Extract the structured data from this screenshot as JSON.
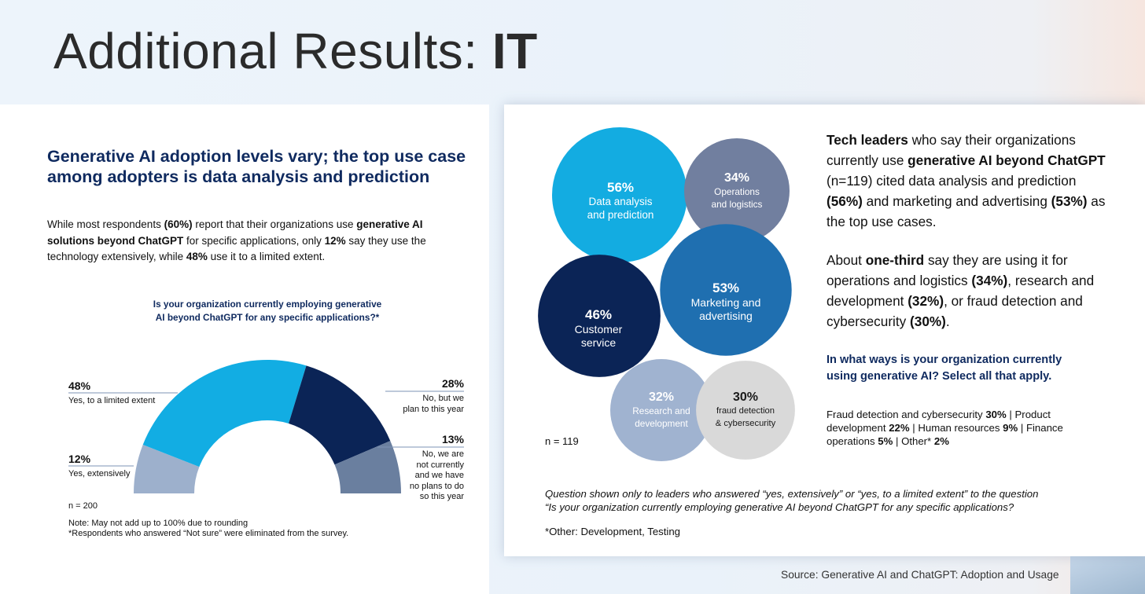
{
  "slide": {
    "title_regular": "Additional Results: ",
    "title_bold": "IT",
    "source": "Source: Generative AI and ChatGPT: Adoption and Usage"
  },
  "left": {
    "headline": "Generative AI adoption levels vary; the top use case among adopters is data analysis and prediction",
    "intro": {
      "t1": "While most respondents ",
      "b1": "(60%)",
      "t2": " report that their organizations use ",
      "b2": "generative AI solutions beyond ChatGPT",
      "t3": " for specific applications, only ",
      "b3": "12%",
      "t4": " say they use the technology extensively, while ",
      "b4": "48%",
      "t5": " use it to a limited extent."
    },
    "question_line1": "Is your organization currently employing generative",
    "question_line2": "AI beyond ChatGPT for any specific applications?*",
    "n": "n = 200",
    "note_line1": "Note: May not add up to 100% due to rounding",
    "note_line2": "*Respondents who answered “Not sure” were eliminated from the survey."
  },
  "right": {
    "n": "n = 119",
    "para1": {
      "b1": "Tech leaders",
      "t1": " who say their organizations currently use ",
      "b2": "generative AI beyond ChatGPT",
      "t2": " (n=119) cited data analysis and prediction ",
      "b3": "(56%)",
      "t3": " and marketing and advertising ",
      "b4": "(53%)",
      "t4": " as the top use cases."
    },
    "para2": {
      "t1": "About ",
      "b1": "one-third",
      "t2": " say they are using it for operations and logistics ",
      "b2": "(34%)",
      "t3": ", research and development ",
      "b3": "(32%)",
      "t4": ", or fraud detection and cybersecurity ",
      "b4": "(30%)",
      "t5": "."
    },
    "question": "In what ways is your organization currently using generative AI? Select all that apply.",
    "other_uses": {
      "l1": "Fraud detection and cybersecurity ",
      "v1": "30%",
      "s1": " | ",
      "l2": "Product development ",
      "v2": "22%",
      "s2": " | ",
      "l3": "Human resources ",
      "v3": "9%",
      "s3": " | ",
      "l4": "Finance operations ",
      "v4": "5%",
      "s4": " | ",
      "l5": "Other* ",
      "v5": "2%"
    },
    "italic_note_line1": "Question shown only to leaders who answered “yes, extensively” or “yes, to a limited extent” to the question",
    "italic_note_line2": "“Is your organization currently employing generative AI beyond ChatGPT for any specific applications?",
    "other_note": "*Other: Development, Testing"
  },
  "chart_data": [
    {
      "type": "pie",
      "subtype": "half-donut",
      "title": "Is your organization currently employing generative AI beyond ChatGPT for any specific applications?*",
      "slices": [
        {
          "label_line1": "Yes, extensively",
          "label_line2": "",
          "value": 12,
          "value_label": "12%",
          "color": "#9db0cc"
        },
        {
          "label_line1": "Yes, to a limited extent",
          "label_line2": "",
          "value": 48,
          "value_label": "48%",
          "color": "#12ade3"
        },
        {
          "label_line1": "No, but we",
          "label_line2": "plan to this year",
          "value": 28,
          "value_label": "28%",
          "color": "#0b2456"
        },
        {
          "label_line1": "No, we are",
          "label_line2": "not currently",
          "label_line3": "and we have",
          "label_line4": "no plans to do",
          "label_line5": "so this year",
          "value": 13,
          "value_label": "13%",
          "color": "#6a7f9f"
        }
      ]
    },
    {
      "type": "bubble",
      "title": "In what ways is your organization currently using generative AI? Select all that apply.",
      "bubbles": [
        {
          "value": 56,
          "value_label": "56%",
          "label_line1": "Data analysis",
          "label_line2": "and prediction",
          "color": "#13ace1",
          "text_color": "#ffffff"
        },
        {
          "value": 34,
          "value_label": "34%",
          "label_line1": "Operations",
          "label_line2": "and logistics",
          "color": "#717f9f",
          "text_color": "#ffffff"
        },
        {
          "value": 53,
          "value_label": "53%",
          "label_line1": "Marketing and",
          "label_line2": "advertising",
          "color": "#1f6fb0",
          "text_color": "#ffffff"
        },
        {
          "value": 46,
          "value_label": "46%",
          "label_line1": "Customer",
          "label_line2": "service",
          "color": "#0b2456",
          "text_color": "#ffffff"
        },
        {
          "value": 32,
          "value_label": "32%",
          "label_line1": "Research and",
          "label_line2": "development",
          "color": "#a0b3d0",
          "text_color": "#ffffff"
        },
        {
          "value": 30,
          "value_label": "30%",
          "label_line1": "fraud detection",
          "label_line2": "& cybersecurity",
          "color": "#d9d9d9",
          "text_color": "#1a1a1a"
        }
      ]
    }
  ]
}
